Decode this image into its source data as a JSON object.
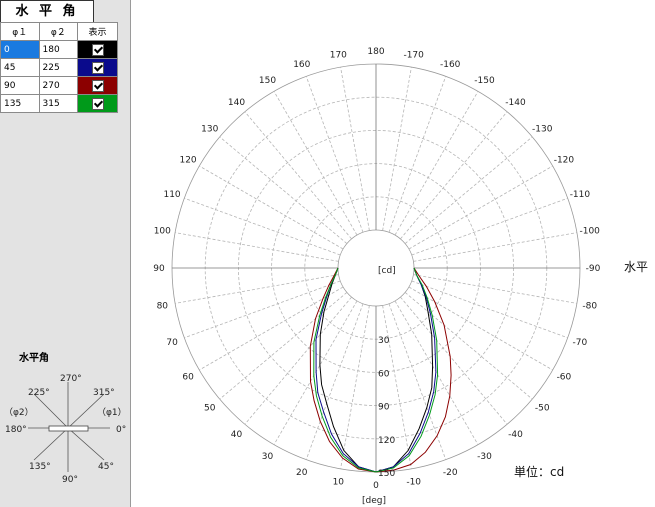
{
  "panel": {
    "tab_title": "水 平 角",
    "table": {
      "headers": [
        "φ１",
        "φ２",
        "表示"
      ],
      "rows": [
        {
          "phi1": "0",
          "phi2": "180",
          "color": "#000000",
          "checked": true,
          "selected": true
        },
        {
          "phi1": "45",
          "phi2": "225",
          "color": "#0a0a8c",
          "checked": true,
          "selected": false
        },
        {
          "phi1": "90",
          "phi2": "270",
          "color": "#8c0000",
          "checked": true,
          "selected": false
        },
        {
          "phi1": "135",
          "phi2": "315",
          "color": "#009a1a",
          "checked": true,
          "selected": false
        }
      ]
    },
    "legend": {
      "title": "水平角",
      "labels": {
        "a270": "270°",
        "a225": "225°",
        "a315": "315°",
        "phi2": "（φ2）",
        "phi1": "（φ1）",
        "a180": "180°",
        "a0": "0°",
        "a135": "135°",
        "a45": "45°",
        "a90": "90°"
      }
    }
  },
  "chart_data": {
    "type": "polar",
    "angle_unit": "[deg]",
    "radial_unit": "[cd]",
    "side_label": "水平",
    "unit_label": "単位：cd",
    "radial_ticks": [
      30,
      60,
      90,
      120,
      150
    ],
    "radial_max": 150,
    "angle_labels": [
      180,
      -170,
      -160,
      -150,
      -140,
      -130,
      -120,
      -110,
      -100,
      -90,
      -80,
      -70,
      -60,
      -50,
      -40,
      -30,
      -20,
      -10,
      0,
      10,
      20,
      30,
      40,
      50,
      60,
      70,
      80,
      90,
      100,
      110,
      120,
      130,
      140,
      150,
      160,
      170
    ],
    "series": [
      {
        "color": "#000000",
        "points": [
          [
            -90,
            0
          ],
          [
            -80,
            3
          ],
          [
            -70,
            9
          ],
          [
            -60,
            17
          ],
          [
            -50,
            27
          ],
          [
            -40,
            44
          ],
          [
            -30,
            68
          ],
          [
            -25,
            85
          ],
          [
            -20,
            100
          ],
          [
            -15,
            116
          ],
          [
            -10,
            133
          ],
          [
            -5,
            146
          ],
          [
            0,
            150
          ],
          [
            5,
            146
          ],
          [
            10,
            133
          ],
          [
            15,
            114
          ],
          [
            20,
            96
          ],
          [
            25,
            82
          ],
          [
            30,
            67
          ],
          [
            40,
            44
          ],
          [
            50,
            27
          ],
          [
            60,
            15
          ],
          [
            70,
            8
          ],
          [
            80,
            3
          ],
          [
            90,
            0
          ]
        ]
      },
      {
        "color": "#0a0a8c",
        "points": [
          [
            -90,
            0
          ],
          [
            -80,
            3
          ],
          [
            -70,
            9
          ],
          [
            -60,
            18
          ],
          [
            -50,
            30
          ],
          [
            -40,
            48
          ],
          [
            -30,
            74
          ],
          [
            -25,
            89
          ],
          [
            -20,
            104
          ],
          [
            -15,
            120
          ],
          [
            -10,
            136
          ],
          [
            -5,
            146
          ],
          [
            0,
            150
          ],
          [
            5,
            146
          ],
          [
            10,
            136
          ],
          [
            15,
            121
          ],
          [
            20,
            104
          ],
          [
            25,
            90
          ],
          [
            30,
            74
          ],
          [
            40,
            50
          ],
          [
            50,
            30
          ],
          [
            60,
            17
          ],
          [
            70,
            9
          ],
          [
            80,
            3
          ],
          [
            90,
            0
          ]
        ]
      },
      {
        "color": "#8c0000",
        "points": [
          [
            -90,
            0
          ],
          [
            -80,
            5
          ],
          [
            -70,
            14
          ],
          [
            -60,
            27
          ],
          [
            -50,
            46
          ],
          [
            -40,
            70
          ],
          [
            -35,
            84
          ],
          [
            -30,
            99
          ],
          [
            -25,
            114
          ],
          [
            -20,
            127
          ],
          [
            -15,
            138
          ],
          [
            -10,
            146
          ],
          [
            -5,
            149
          ],
          [
            0,
            150
          ],
          [
            5,
            148
          ],
          [
            10,
            140
          ],
          [
            15,
            128
          ],
          [
            20,
            113
          ],
          [
            25,
            98
          ],
          [
            30,
            84
          ],
          [
            40,
            58
          ],
          [
            50,
            37
          ],
          [
            60,
            21
          ],
          [
            70,
            11
          ],
          [
            80,
            4
          ],
          [
            90,
            0
          ]
        ]
      },
      {
        "color": "#009a1a",
        "points": [
          [
            -90,
            0
          ],
          [
            -80,
            3
          ],
          [
            -70,
            10
          ],
          [
            -60,
            19
          ],
          [
            -50,
            32
          ],
          [
            -40,
            51
          ],
          [
            -30,
            77
          ],
          [
            -25,
            92
          ],
          [
            -20,
            107
          ],
          [
            -15,
            123
          ],
          [
            -10,
            138
          ],
          [
            -5,
            147
          ],
          [
            0,
            150
          ],
          [
            5,
            147
          ],
          [
            10,
            138
          ],
          [
            15,
            124
          ],
          [
            20,
            108
          ],
          [
            25,
            93
          ],
          [
            30,
            78
          ],
          [
            40,
            53
          ],
          [
            50,
            32
          ],
          [
            60,
            18
          ],
          [
            70,
            9
          ],
          [
            80,
            3
          ],
          [
            90,
            0
          ]
        ]
      }
    ]
  }
}
